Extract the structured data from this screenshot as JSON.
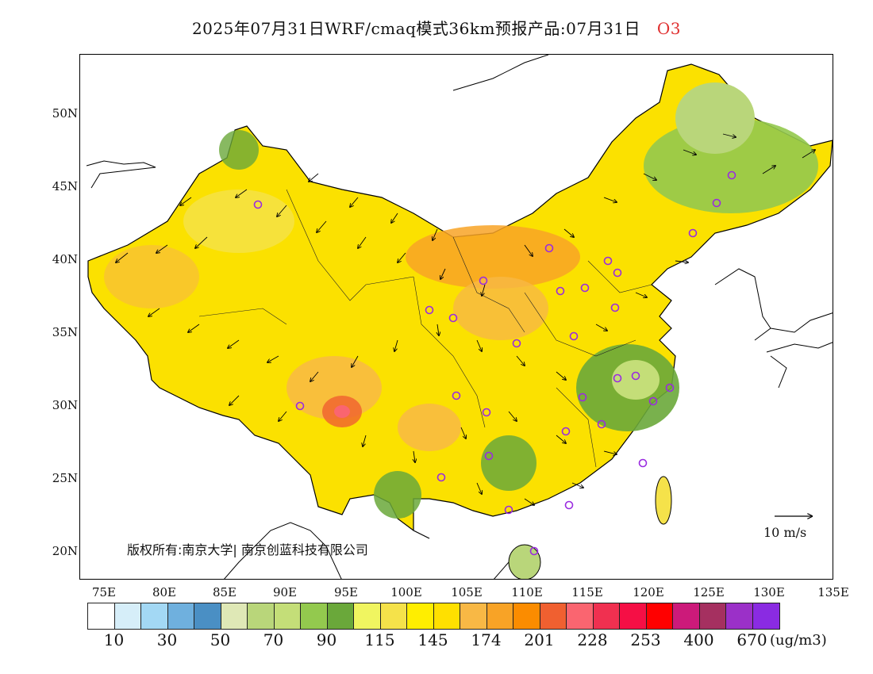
{
  "title": {
    "main": "2025年07月31日WRF/cmaq模式36km预报产品:07月31日",
    "species": "O3"
  },
  "axes": {
    "lat_labels": [
      "50N",
      "45N",
      "40N",
      "35N",
      "30N",
      "25N",
      "20N"
    ],
    "lon_labels": [
      "75E",
      "80E",
      "85E",
      "90E",
      "95E",
      "100E",
      "105E",
      "110E",
      "115E",
      "120E",
      "125E",
      "130E",
      "135E"
    ]
  },
  "copyright": "版权所有:南京大学| 南京创蓝科技有限公司",
  "wind_scale": "10 m/s",
  "colorbar": {
    "colors": [
      "#ffffff",
      "#d6eef9",
      "#a3d8f4",
      "#6fb0de",
      "#4a8fc4",
      "#dfe8b6",
      "#b9d67a",
      "#c4de78",
      "#93c94e",
      "#6aa83a",
      "#f0f560",
      "#f5e24a",
      "#ffee00",
      "#ffe000",
      "#f8b845",
      "#f8a326",
      "#fb8c00",
      "#f06030",
      "#fa6570",
      "#f03050",
      "#f50f45",
      "#ff0000",
      "#cc1a7a",
      "#a53060",
      "#9b30c8",
      "#8a2be2"
    ],
    "labels": [
      "10",
      "30",
      "50",
      "70",
      "90",
      "115",
      "145",
      "174",
      "201",
      "228",
      "253",
      "400",
      "670"
    ],
    "unit": "(ug/m3)"
  },
  "colors": {
    "title_species": "#e03030",
    "stations": "#9a2be0"
  }
}
